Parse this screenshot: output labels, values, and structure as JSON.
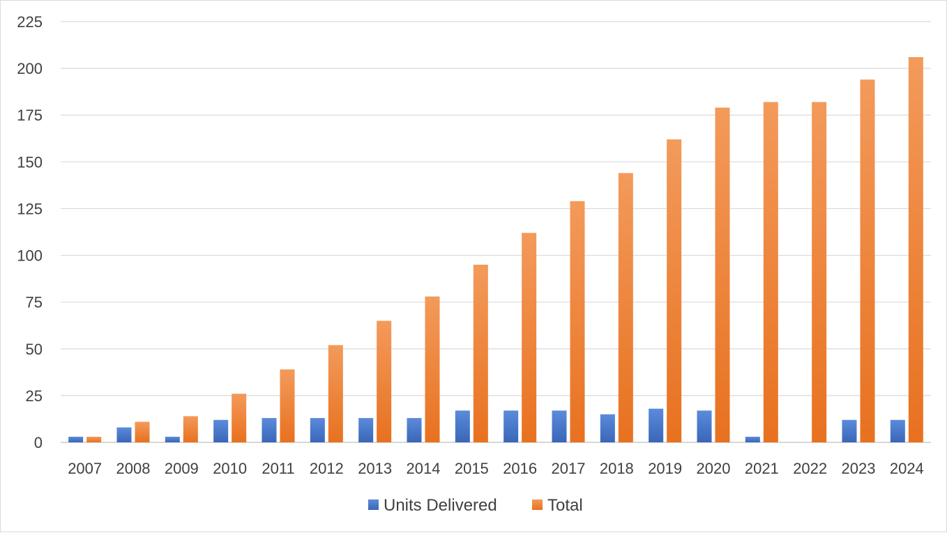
{
  "chart_data": {
    "type": "bar",
    "title": "",
    "xlabel": "",
    "ylabel": "",
    "categories": [
      "2007",
      "2008",
      "2009",
      "2010",
      "2011",
      "2012",
      "2013",
      "2014",
      "2015",
      "2016",
      "2017",
      "2018",
      "2019",
      "2020",
      "2021",
      "2022",
      "2023",
      "2024"
    ],
    "series": [
      {
        "name": "Units Delivered",
        "color": "#4472C4",
        "values": [
          3,
          8,
          3,
          12,
          13,
          13,
          13,
          13,
          17,
          17,
          17,
          15,
          18,
          17,
          3,
          0,
          12,
          12
        ]
      },
      {
        "name": "Total",
        "color": "#ED7D31",
        "values": [
          3,
          11,
          14,
          26,
          39,
          52,
          65,
          78,
          95,
          112,
          129,
          144,
          162,
          179,
          182,
          182,
          194,
          206
        ]
      }
    ],
    "ylim": [
      0,
      225
    ],
    "yticks": [
      0,
      25,
      50,
      75,
      100,
      125,
      150,
      175,
      200,
      225
    ],
    "grid": true,
    "legend": "bottom-center"
  }
}
